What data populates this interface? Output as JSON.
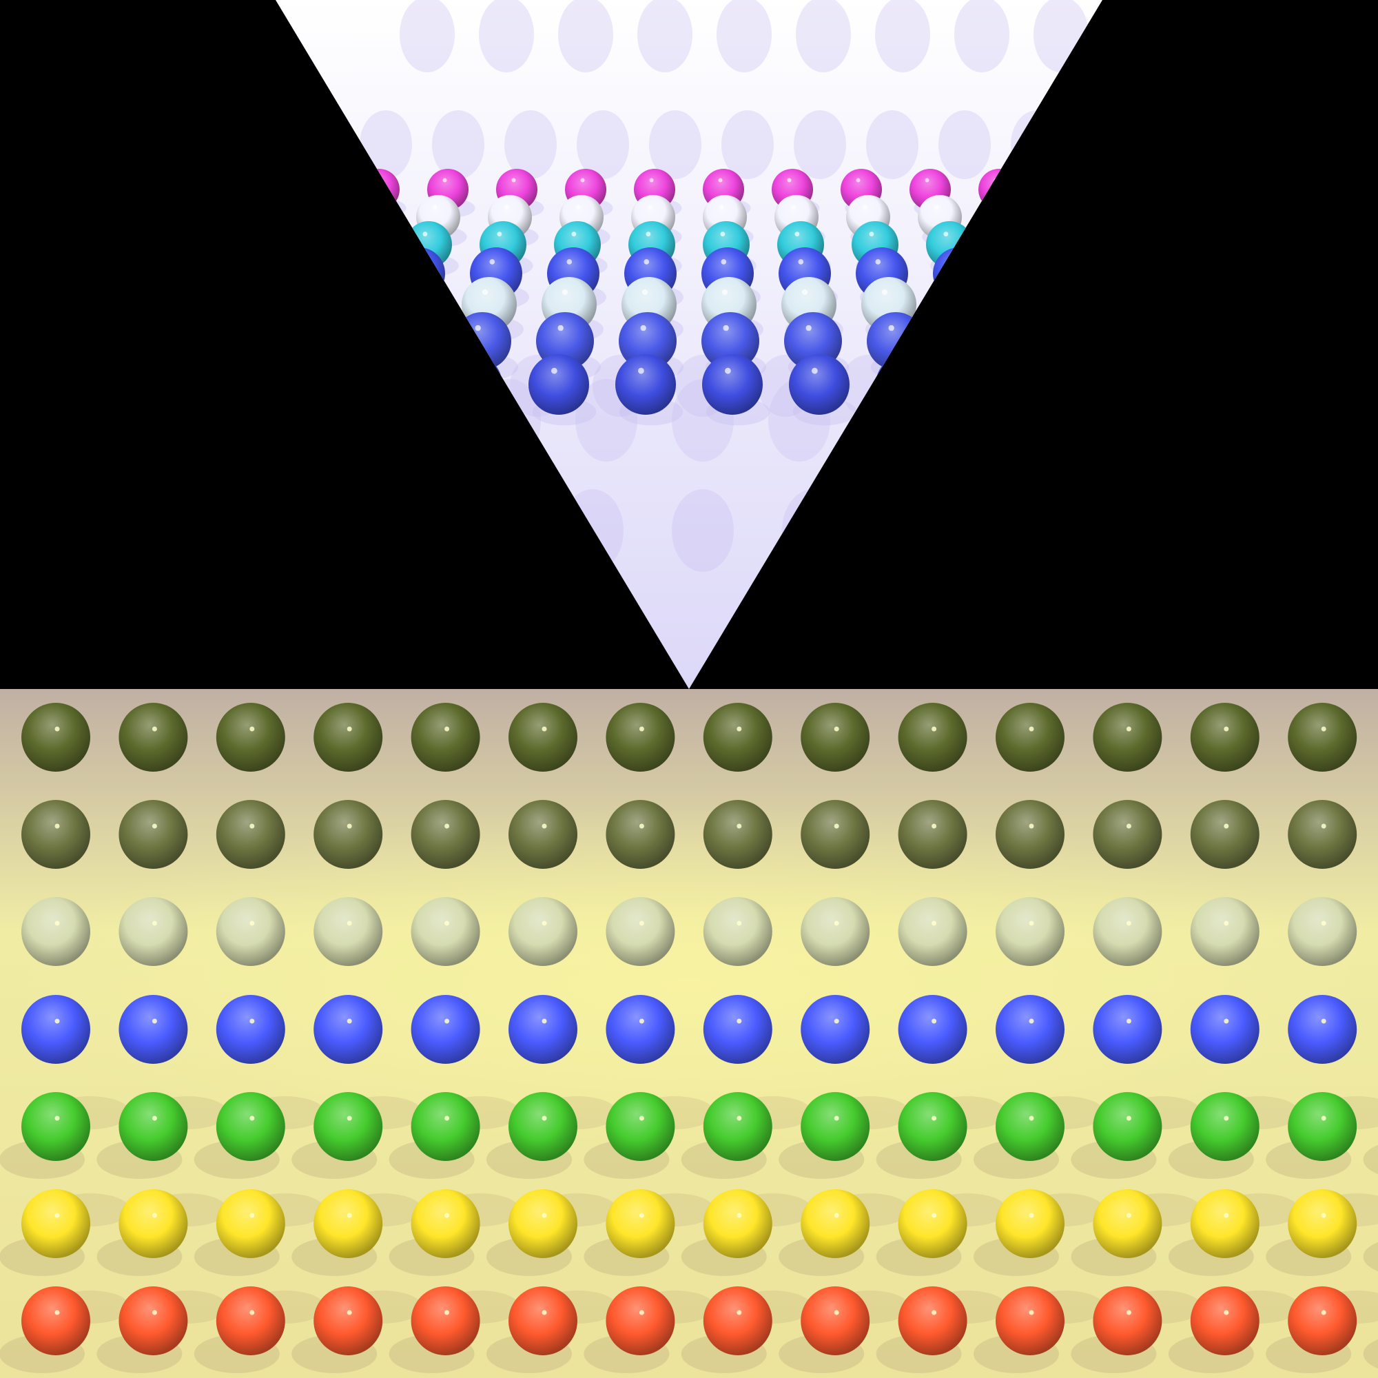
{
  "scene": {
    "background": "#000000",
    "upper_panel": {
      "shape": "inverted-triangle",
      "gradient_top": "#ffffff",
      "gradient_bottom": "#dcd8f8",
      "shadow_color": "#c8c0f0",
      "ball_rows": [
        {
          "name": "magenta-row",
          "color": "#ee44dd",
          "count": 10
        },
        {
          "name": "white-row",
          "color": "#f4f4ff",
          "count": 9
        },
        {
          "name": "cyan-row",
          "color": "#33ccdd",
          "count": 8
        },
        {
          "name": "blue-row",
          "color": "#4455ee",
          "count": 7
        },
        {
          "name": "pale-row",
          "color": "#dcecf4",
          "count": 6
        },
        {
          "name": "blue-row-2",
          "color": "#4a5ae8",
          "count": 5
        },
        {
          "name": "blue-row-3",
          "color": "#3f4ee0",
          "count": 4
        }
      ]
    },
    "lower_panel": {
      "gradient_top": "#c0b0a4",
      "gradient_mid": "#f0eca4",
      "gradient_bottom": "#ece39c",
      "shadow_color": "#b4a478",
      "columns": 14,
      "ball_rows": [
        {
          "name": "olive-dark-row",
          "color": "#5c6a2c"
        },
        {
          "name": "olive-row",
          "color": "#6e7642"
        },
        {
          "name": "cream-row",
          "color": "#d6dcb0"
        },
        {
          "name": "blue-row",
          "color": "#4a5cff"
        },
        {
          "name": "green-row",
          "color": "#46cc2e"
        },
        {
          "name": "yellow-row",
          "color": "#ffe62a"
        },
        {
          "name": "orange-row",
          "color": "#ff5a2e"
        }
      ]
    }
  }
}
